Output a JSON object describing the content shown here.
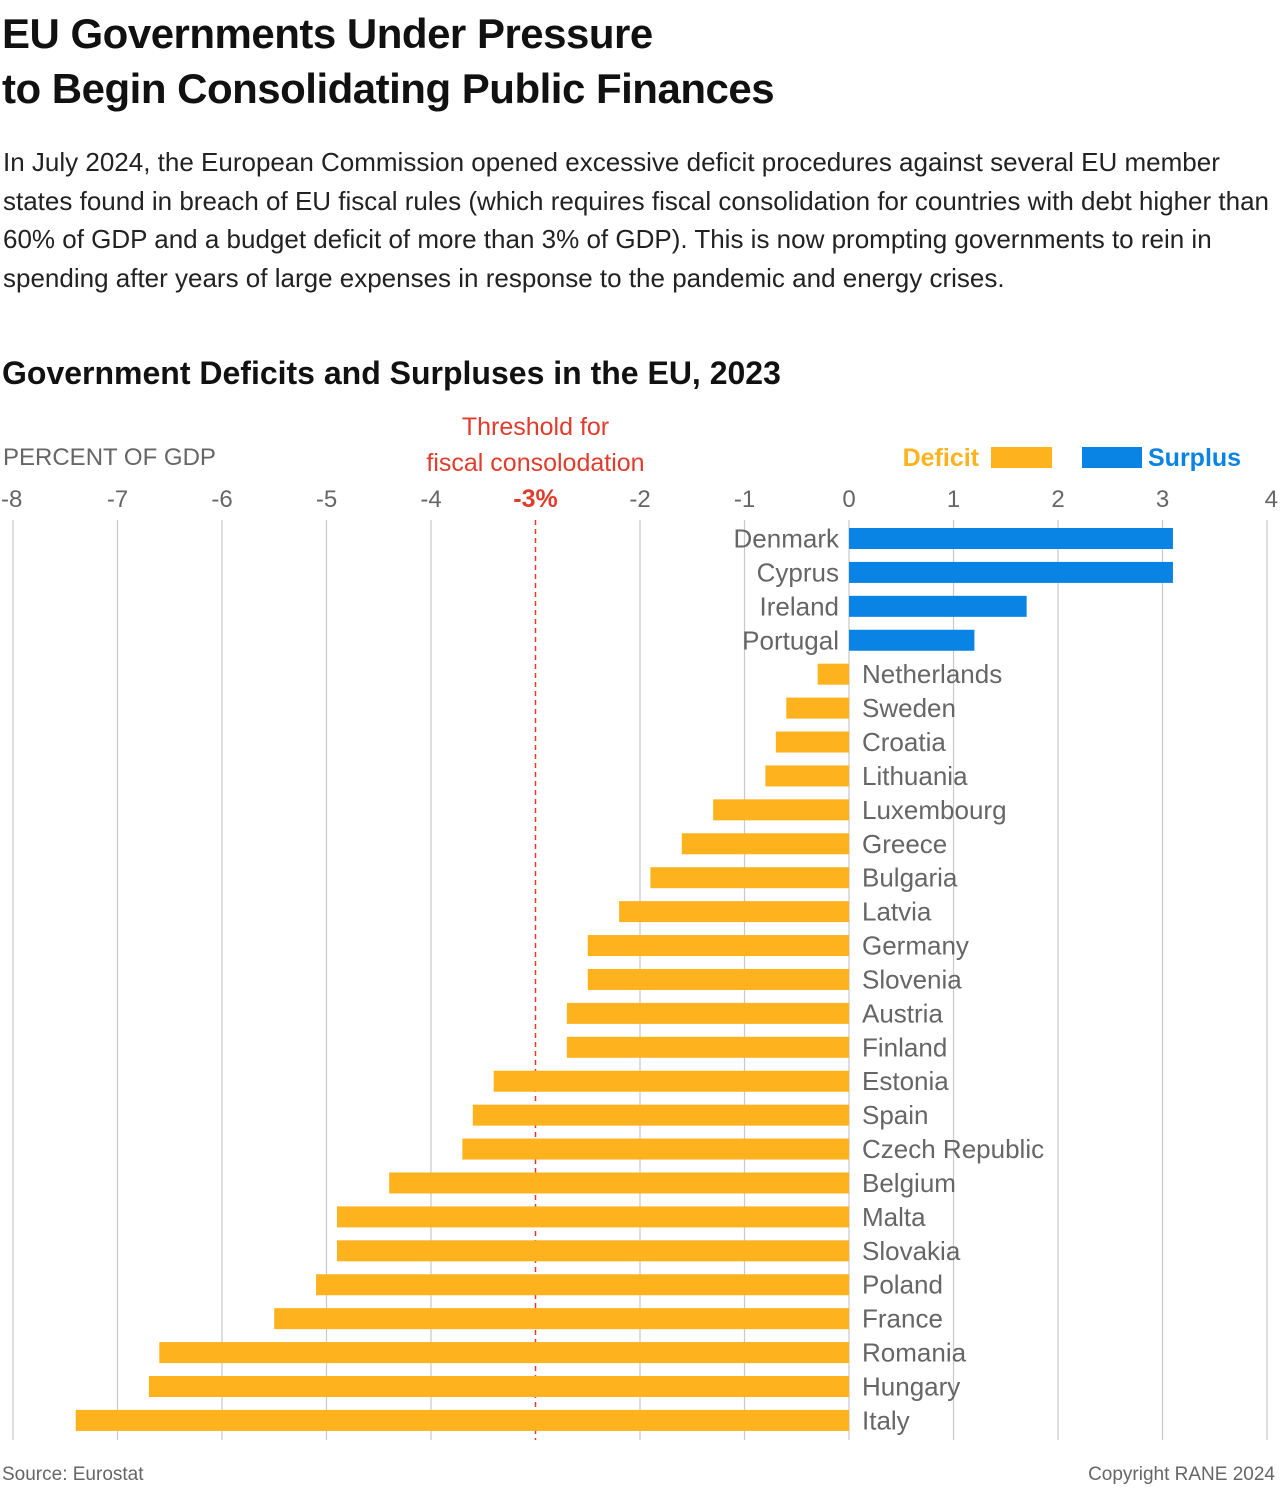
{
  "title": {
    "line1": "EU Governments Under Pressure",
    "line2": "to Begin Consolidating Public Finances"
  },
  "intro": "In July 2024, the European Commission opened excessive deficit procedures against several EU member states found in breach of EU fiscal rules (which requires fiscal consolidation for countries with debt higher than 60% of GDP and a budget deficit of more than 3% of GDP). This is now prompting governments to rein in spending after years of large expenses in response to the pandemic and energy crises.",
  "footer": {
    "source": "Source: Eurostat",
    "copyright": "Copyright RANE 2024"
  },
  "colors": {
    "deficit": "#fdb21e",
    "surplus": "#0a84e4",
    "threshold": "#e33b2b",
    "grid": "#c8c8c8",
    "axis_text": "#666666"
  },
  "chart_data": {
    "type": "bar",
    "orientation": "horizontal",
    "title": "Government Deficits and Surpluses in the EU, 2023",
    "xlabel": "PERCENT OF GDP",
    "xlim": [
      -8,
      4
    ],
    "xticks": [
      -8,
      -7,
      -6,
      -5,
      -4,
      -3,
      -2,
      -1,
      0,
      1,
      2,
      3,
      4
    ],
    "xtick_labels": [
      "-8",
      "-7",
      "-6",
      "-5",
      "-4",
      "-3%",
      "-2",
      "-1",
      "0",
      "1",
      "2",
      "3",
      "4"
    ],
    "grid": true,
    "legend": {
      "placement": "top-right",
      "entries": [
        {
          "name": "Deficit",
          "color_key": "deficit"
        },
        {
          "name": "Surplus",
          "color_key": "surplus"
        }
      ]
    },
    "threshold": {
      "value": -3,
      "label_line1": "Threshold for",
      "label_line2": "fiscal consolodation"
    },
    "categories": [
      "Denmark",
      "Cyprus",
      "Ireland",
      "Portugal",
      "Netherlands",
      "Sweden",
      "Croatia",
      "Lithuania",
      "Luxembourg",
      "Greece",
      "Bulgaria",
      "Latvia",
      "Germany",
      "Slovenia",
      "Austria",
      "Finland",
      "Estonia",
      "Spain",
      "Czech Republic",
      "Belgium",
      "Malta",
      "Slovakia",
      "Poland",
      "France",
      "Romania",
      "Hungary",
      "Italy"
    ],
    "values": [
      3.1,
      3.1,
      1.7,
      1.2,
      -0.3,
      -0.6,
      -0.7,
      -0.8,
      -1.3,
      -1.6,
      -1.9,
      -2.2,
      -2.5,
      -2.5,
      -2.7,
      -2.7,
      -3.4,
      -3.6,
      -3.7,
      -4.4,
      -4.9,
      -4.9,
      -5.1,
      -5.5,
      -6.6,
      -6.7,
      -7.4
    ]
  }
}
